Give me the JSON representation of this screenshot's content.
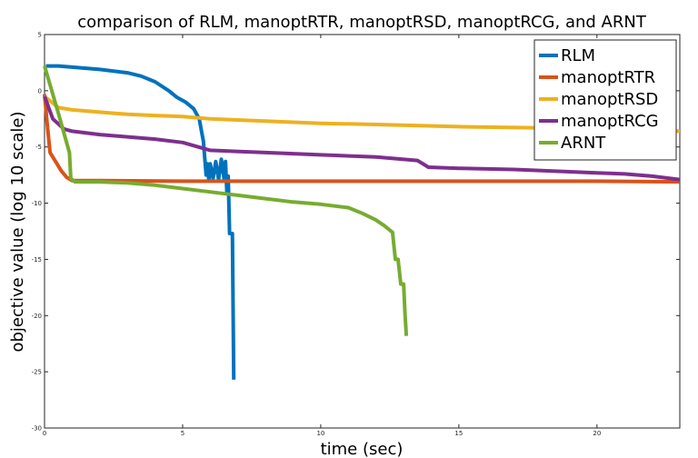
{
  "chart_data": {
    "type": "line",
    "title": "comparison of RLM, manoptRTR, manoptRSD, manoptRCG, and ARNT",
    "xlabel": "time (sec)",
    "ylabel": "objective value (log 10 scale)",
    "xlim": [
      0,
      23
    ],
    "ylim": [
      -30,
      5
    ],
    "xticks": [
      0,
      5,
      10,
      15,
      20
    ],
    "yticks": [
      -30,
      -25,
      -20,
      -15,
      -10,
      -5,
      0,
      5
    ],
    "grid": false,
    "legend_position": "top-right",
    "series": [
      {
        "name": "RLM",
        "color": "#0072BD",
        "points": [
          [
            0.05,
            2.2
          ],
          [
            0.5,
            2.2
          ],
          [
            1.0,
            2.1
          ],
          [
            2.0,
            1.9
          ],
          [
            3.0,
            1.6
          ],
          [
            3.5,
            1.3
          ],
          [
            4.0,
            0.8
          ],
          [
            4.5,
            0.0
          ],
          [
            4.8,
            -0.6
          ],
          [
            5.1,
            -1.0
          ],
          [
            5.4,
            -1.6
          ],
          [
            5.6,
            -2.5
          ],
          [
            5.75,
            -4.5
          ],
          [
            5.85,
            -7.5
          ],
          [
            5.9,
            -6.5
          ],
          [
            5.95,
            -8.0
          ],
          [
            6.0,
            -6.5
          ],
          [
            6.1,
            -7.8
          ],
          [
            6.2,
            -6.3
          ],
          [
            6.3,
            -7.9
          ],
          [
            6.4,
            -6.1
          ],
          [
            6.5,
            -7.8
          ],
          [
            6.55,
            -6.3
          ],
          [
            6.6,
            -9.0
          ],
          [
            6.65,
            -7.6
          ],
          [
            6.7,
            -12.7
          ],
          [
            6.8,
            -12.7
          ],
          [
            6.85,
            -25.7
          ]
        ]
      },
      {
        "name": "manoptRTR",
        "color": "#D95319",
        "points": [
          [
            0.0,
            -0.3
          ],
          [
            0.1,
            -3.0
          ],
          [
            0.2,
            -5.5
          ],
          [
            0.4,
            -6.3
          ],
          [
            0.6,
            -7.1
          ],
          [
            0.8,
            -7.7
          ],
          [
            1.0,
            -8.0
          ],
          [
            2.0,
            -8.0
          ],
          [
            5.0,
            -8.05
          ],
          [
            10.0,
            -8.05
          ],
          [
            15.0,
            -8.05
          ],
          [
            20.0,
            -8.05
          ],
          [
            23.0,
            -8.1
          ]
        ]
      },
      {
        "name": "manoptRSD",
        "color": "#EDB120",
        "points": [
          [
            0.0,
            -0.5
          ],
          [
            0.5,
            -1.5
          ],
          [
            1.0,
            -1.7
          ],
          [
            2.0,
            -1.9
          ],
          [
            3.0,
            -2.1
          ],
          [
            4.0,
            -2.2
          ],
          [
            5.0,
            -2.3
          ],
          [
            6.0,
            -2.5
          ],
          [
            8.0,
            -2.7
          ],
          [
            10.0,
            -2.9
          ],
          [
            12.0,
            -3.0
          ],
          [
            15.0,
            -3.2
          ],
          [
            18.0,
            -3.3
          ],
          [
            20.0,
            -3.4
          ],
          [
            23.0,
            -3.6
          ]
        ]
      },
      {
        "name": "manoptRCG",
        "color": "#7E2F8E",
        "points": [
          [
            0.0,
            -0.5
          ],
          [
            0.3,
            -2.5
          ],
          [
            0.7,
            -3.4
          ],
          [
            1.0,
            -3.6
          ],
          [
            2.0,
            -3.9
          ],
          [
            3.0,
            -4.1
          ],
          [
            4.0,
            -4.3
          ],
          [
            5.0,
            -4.6
          ],
          [
            6.0,
            -5.3
          ],
          [
            8.0,
            -5.5
          ],
          [
            10.0,
            -5.7
          ],
          [
            12.0,
            -5.9
          ],
          [
            13.5,
            -6.2
          ],
          [
            13.9,
            -6.8
          ],
          [
            15.0,
            -6.9
          ],
          [
            17.0,
            -7.0
          ],
          [
            20.0,
            -7.3
          ],
          [
            21.0,
            -7.4
          ],
          [
            22.0,
            -7.6
          ],
          [
            23.0,
            -7.9
          ]
        ]
      },
      {
        "name": "ARNT",
        "color": "#77AC30",
        "points": [
          [
            0.0,
            2.2
          ],
          [
            0.5,
            -2.0
          ],
          [
            0.9,
            -5.5
          ],
          [
            0.95,
            -7.8
          ],
          [
            1.1,
            -8.1
          ],
          [
            2.0,
            -8.1
          ],
          [
            3.0,
            -8.2
          ],
          [
            4.0,
            -8.4
          ],
          [
            5.0,
            -8.7
          ],
          [
            6.0,
            -9.0
          ],
          [
            7.0,
            -9.3
          ],
          [
            8.0,
            -9.6
          ],
          [
            9.0,
            -9.9
          ],
          [
            10.0,
            -10.1
          ],
          [
            11.0,
            -10.4
          ],
          [
            11.5,
            -10.9
          ],
          [
            12.0,
            -11.5
          ],
          [
            12.3,
            -12.0
          ],
          [
            12.6,
            -12.6
          ],
          [
            12.7,
            -15.0
          ],
          [
            12.8,
            -15.0
          ],
          [
            12.9,
            -17.2
          ],
          [
            13.0,
            -17.2
          ],
          [
            13.05,
            -19.8
          ],
          [
            13.1,
            -21.8
          ]
        ]
      }
    ]
  }
}
